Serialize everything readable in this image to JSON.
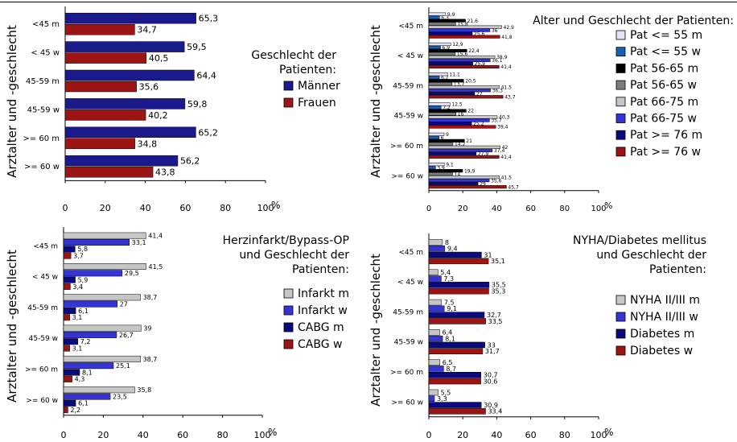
{
  "colors": {
    "maenner": "#1a1a8c",
    "frauen": "#9c1414",
    "light_lavender": "#e2e2f6",
    "blue_w": "#1a5fb4",
    "black": "#000000",
    "dark_gray": "#7d7d7d",
    "light_gray": "#c6c6c6",
    "bright_blue": "#3535d6",
    "navy": "#0a0a80",
    "dark_red": "#9c1414"
  },
  "chart_data": [
    {
      "type": "bar",
      "orientation": "horizontal",
      "title": "Geschlecht der Patienten:",
      "ylabel": "Arztalter und -geschlecht",
      "xlabel": "%",
      "xlim": [
        0,
        100
      ],
      "xticks": [
        0,
        20,
        40,
        60,
        80,
        100
      ],
      "categories": [
        "<45 m",
        "< 45 w",
        "45-59 m",
        "45-59 w",
        ">= 60 m",
        ">= 60 w"
      ],
      "series": [
        {
          "name": "Männer",
          "color": "#1a1a8c",
          "values": [
            "65,3",
            "59,5",
            "64,4",
            "59,8",
            "65,2",
            "56,2"
          ]
        },
        {
          "name": "Frauen",
          "color": "#9c1414",
          "values": [
            "34,7",
            "40,5",
            "35,6",
            "40,2",
            "34,8",
            "43,8"
          ]
        }
      ]
    },
    {
      "type": "bar",
      "orientation": "horizontal",
      "title": "Alter und Geschlecht der Patienten:",
      "ylabel": "Arztalter und -geschlecht",
      "xlabel": "%",
      "xlim": [
        0,
        100
      ],
      "xticks": [
        0,
        20,
        40,
        60,
        80,
        100
      ],
      "categories": [
        "<45 m",
        "< 45 w",
        "45-59 m",
        "45-59 w",
        ">= 60 m",
        ">= 60 w"
      ],
      "series": [
        {
          "name": "Pat <= 55 m",
          "color": "#e2e2f6",
          "values": [
            "9,9",
            "12,9",
            "11,1",
            "12,5",
            "9",
            "9,1"
          ]
        },
        {
          "name": "Pat <= 55 w",
          "color": "#1a5fb4",
          "values": [
            "6,3",
            "6,9",
            "6,2",
            "7,2",
            "6",
            "3,9"
          ]
        },
        {
          "name": "Pat 56-65 m",
          "color": "#000000",
          "values": [
            "21,6",
            "22,4",
            "20,5",
            "22",
            "21",
            "19,9"
          ]
        },
        {
          "name": "Pat 56-65 w",
          "color": "#7d7d7d",
          "values": [
            "15,8",
            "15,6",
            "13,7",
            "16",
            "14,2",
            "14"
          ]
        },
        {
          "name": "Pat 66-75 m",
          "color": "#c6c6c6",
          "values": [
            "42,9",
            "38,9",
            "41,5",
            "40,3",
            "42",
            "41,5"
          ]
        },
        {
          "name": "Pat 66-75 w",
          "color": "#3535d6",
          "values": [
            "36",
            "36,1",
            "36,3",
            "35,7",
            "37,4",
            "35,6"
          ]
        },
        {
          "name": "Pat >= 76 m",
          "color": "#0a0a80",
          "values": [
            "25,6",
            "25,9",
            "27",
            "25,2",
            "27,9",
            "29"
          ]
        },
        {
          "name": "Pat >= 76 w",
          "color": "#9c1414",
          "values": [
            "41,8",
            "41,4",
            "43,7",
            "39,4",
            "41,4",
            "45,7"
          ]
        }
      ]
    },
    {
      "type": "bar",
      "orientation": "horizontal",
      "title": "Herzinfarkt/Bypass-OP und Geschlecht der Patienten:",
      "ylabel": "Arztalter und -geschlecht",
      "xlabel": "%",
      "xlim": [
        0,
        100
      ],
      "xticks": [
        0,
        20,
        40,
        60,
        80,
        100
      ],
      "categories": [
        "<45 m",
        "< 45 w",
        "45-59 m",
        "45-59 w",
        ">= 60 m",
        ">= 60 w"
      ],
      "series": [
        {
          "name": "Infarkt m",
          "color": "#c6c6c6",
          "values": [
            "41,4",
            "41,5",
            "38,7",
            "39",
            "38,7",
            "35,8"
          ]
        },
        {
          "name": "Infarkt w",
          "color": "#3535d6",
          "values": [
            "33,1",
            "29,5",
            "27",
            "26,7",
            "25,1",
            "23,5"
          ]
        },
        {
          "name": "CABG m",
          "color": "#0a0a80",
          "values": [
            "5,8",
            "5,9",
            "6,1",
            "7,2",
            "8,1",
            "6,1"
          ]
        },
        {
          "name": "CABG w",
          "color": "#9c1414",
          "values": [
            "3,7",
            "3,4",
            "3,1",
            "3,1",
            "4,3",
            "2,2"
          ]
        }
      ]
    },
    {
      "type": "bar",
      "orientation": "horizontal",
      "title": "NYHA/Diabetes mellitus und Geschlecht der Patienten:",
      "ylabel": "Arztalter und -geschlecht",
      "xlabel": "%",
      "xlim": [
        0,
        100
      ],
      "xticks": [
        0,
        20,
        40,
        60,
        80,
        100
      ],
      "categories": [
        "<45 m",
        "< 45 w",
        "45-59 m",
        "45-59 w",
        ">= 60 m",
        ">= 60 w"
      ],
      "series": [
        {
          "name": "NYHA II/III m",
          "color": "#c6c6c6",
          "values": [
            "8",
            "5,4",
            "7,5",
            "6,4",
            "6,5",
            "5,5"
          ]
        },
        {
          "name": "NYHA II/III w",
          "color": "#3535d6",
          "values": [
            "9,4",
            "7,3",
            "9,1",
            "8,1",
            "8,7",
            "3,3"
          ]
        },
        {
          "name": "Diabetes m",
          "color": "#0a0a80",
          "values": [
            "31",
            "35,5",
            "32,7",
            "33",
            "30,7",
            "30,9"
          ]
        },
        {
          "name": "Diabetes w",
          "color": "#9c1414",
          "values": [
            "35,1",
            "35,3",
            "33,5",
            "31,7",
            "30,6",
            "33,4"
          ]
        }
      ]
    }
  ]
}
